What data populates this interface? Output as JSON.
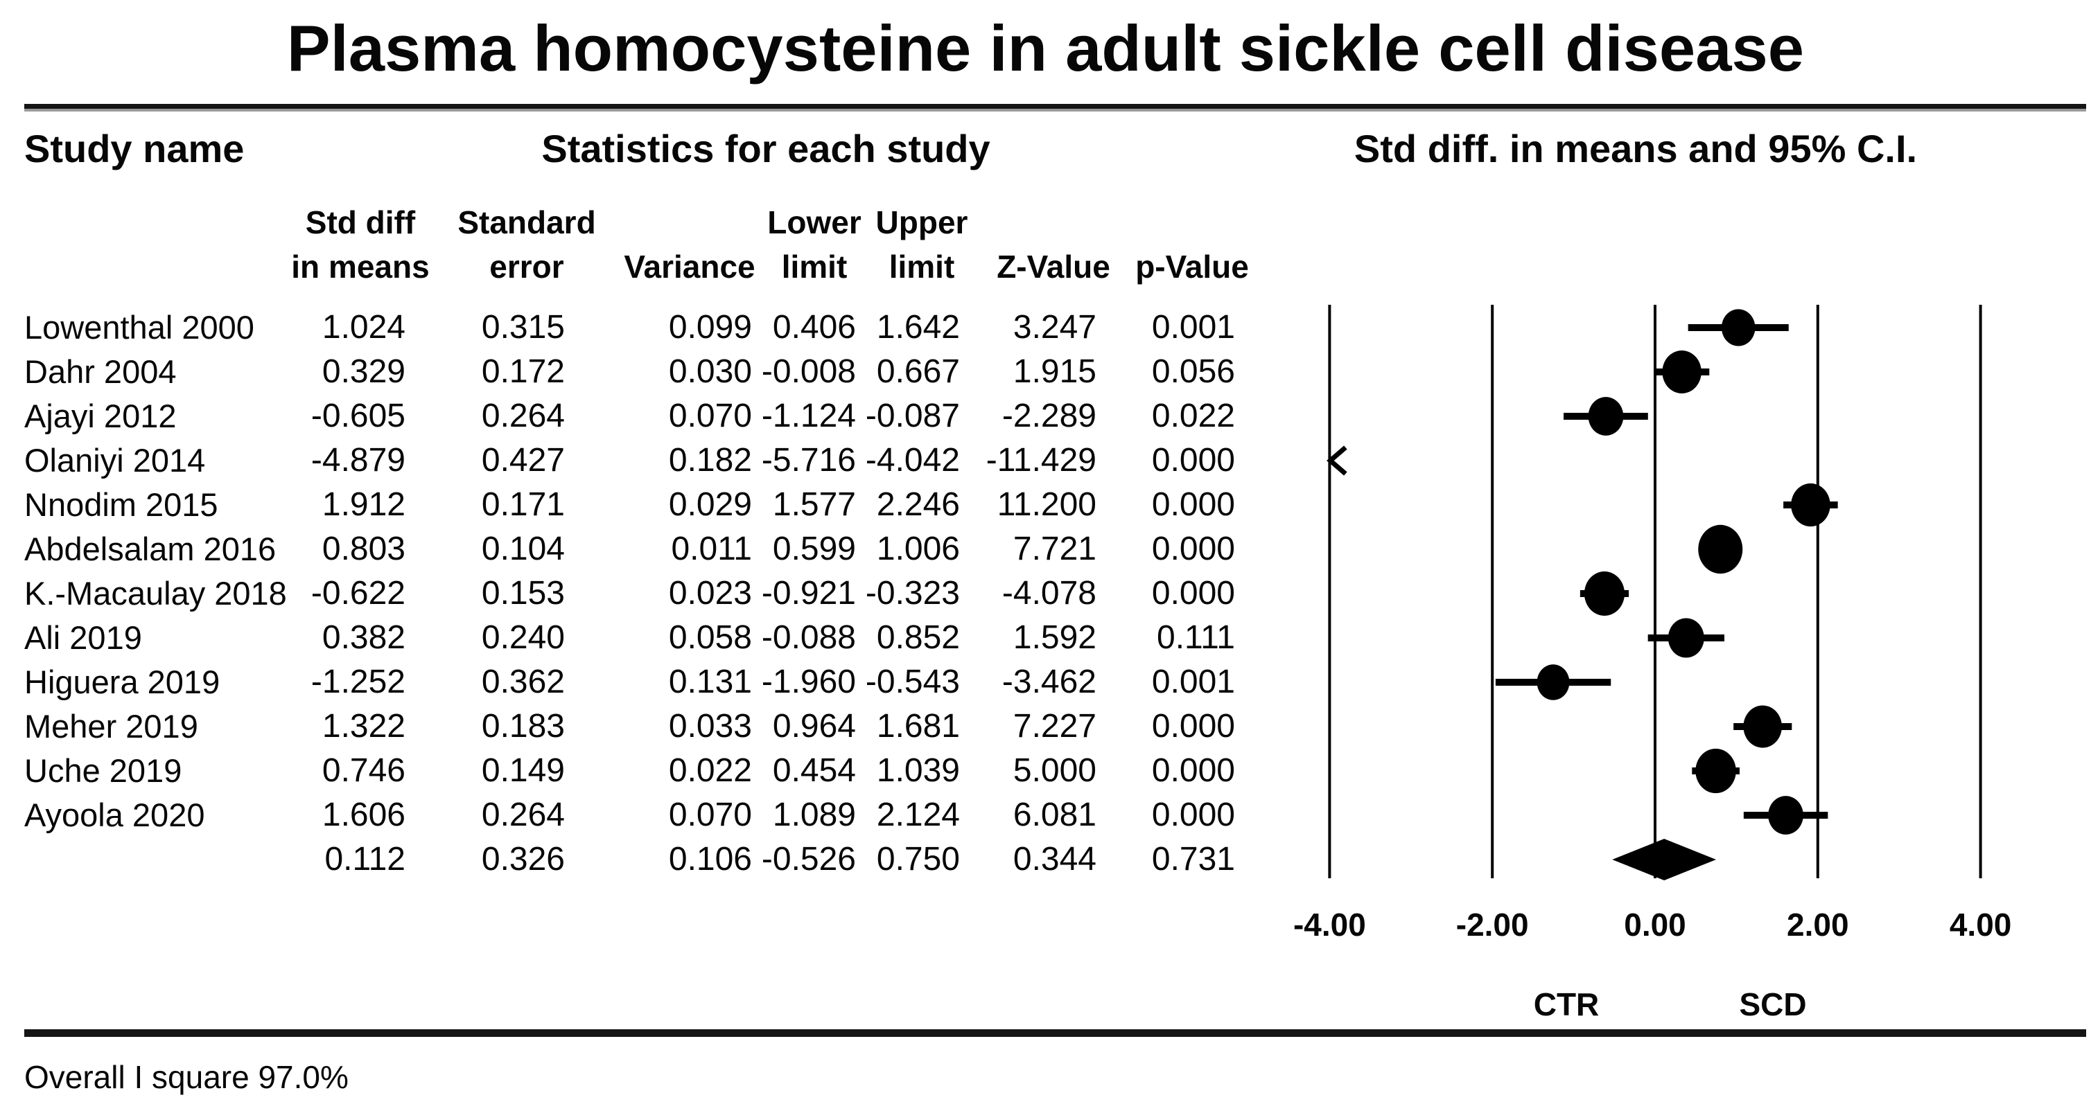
{
  "title": "Plasma homocysteine in adult sickle cell disease",
  "table": {
    "section_headers": {
      "study": "Study name",
      "stats": "Statistics for each study",
      "plot": "Std diff. in means and 95% C.I."
    },
    "columns": [
      {
        "lines": [
          "Std diff",
          "in means"
        ]
      },
      {
        "lines": [
          "Standard",
          "error"
        ]
      },
      {
        "lines": [
          "Variance"
        ]
      },
      {
        "lines": [
          "Lower",
          "limit"
        ]
      },
      {
        "lines": [
          "Upper",
          "limit"
        ]
      },
      {
        "lines": [
          "Z-Value"
        ]
      },
      {
        "lines": [
          "p-Value"
        ]
      }
    ],
    "rows": [
      {
        "study": "Lowenthal 2000",
        "std_diff": "1.024",
        "std_err": "0.315",
        "variance": "0.099",
        "lower": "0.406",
        "upper": "1.642",
        "z": "3.247",
        "p": "0.001"
      },
      {
        "study": "Dahr 2004",
        "std_diff": "0.329",
        "std_err": "0.172",
        "variance": "0.030",
        "lower": "-0.008",
        "upper": "0.667",
        "z": "1.915",
        "p": "0.056"
      },
      {
        "study": "Ajayi 2012",
        "std_diff": "-0.605",
        "std_err": "0.264",
        "variance": "0.070",
        "lower": "-1.124",
        "upper": "-0.087",
        "z": "-2.289",
        "p": "0.022"
      },
      {
        "study": "Olaniyi 2014",
        "std_diff": "-4.879",
        "std_err": "0.427",
        "variance": "0.182",
        "lower": "-5.716",
        "upper": "-4.042",
        "z": "-11.429",
        "p": "0.000"
      },
      {
        "study": "Nnodim 2015",
        "std_diff": "1.912",
        "std_err": "0.171",
        "variance": "0.029",
        "lower": "1.577",
        "upper": "2.246",
        "z": "11.200",
        "p": "0.000"
      },
      {
        "study": "Abdelsalam 2016",
        "std_diff": "0.803",
        "std_err": "0.104",
        "variance": "0.011",
        "lower": "0.599",
        "upper": "1.006",
        "z": "7.721",
        "p": "0.000"
      },
      {
        "study": "K.-Macaulay 2018",
        "std_diff": "-0.622",
        "std_err": "0.153",
        "variance": "0.023",
        "lower": "-0.921",
        "upper": "-0.323",
        "z": "-4.078",
        "p": "0.000"
      },
      {
        "study": "Ali 2019",
        "std_diff": "0.382",
        "std_err": "0.240",
        "variance": "0.058",
        "lower": "-0.088",
        "upper": "0.852",
        "z": "1.592",
        "p": "0.111"
      },
      {
        "study": "Higuera 2019",
        "std_diff": "-1.252",
        "std_err": "0.362",
        "variance": "0.131",
        "lower": "-1.960",
        "upper": "-0.543",
        "z": "-3.462",
        "p": "0.001"
      },
      {
        "study": "Meher 2019",
        "std_diff": "1.322",
        "std_err": "0.183",
        "variance": "0.033",
        "lower": "0.964",
        "upper": "1.681",
        "z": "7.227",
        "p": "0.000"
      },
      {
        "study": "Uche 2019",
        "std_diff": "0.746",
        "std_err": "0.149",
        "variance": "0.022",
        "lower": "0.454",
        "upper": "1.039",
        "z": "5.000",
        "p": "0.000"
      },
      {
        "study": "Ayoola 2020",
        "std_diff": "1.606",
        "std_err": "0.264",
        "variance": "0.070",
        "lower": "1.089",
        "upper": "2.124",
        "z": "6.081",
        "p": "0.000"
      },
      {
        "study": "",
        "std_diff": "0.112",
        "std_err": "0.326",
        "variance": "0.106",
        "lower": "-0.526",
        "upper": "0.750",
        "z": "0.344",
        "p": "0.731"
      }
    ]
  },
  "axis": {
    "tick_values": [
      -4,
      -2,
      0,
      2,
      4
    ],
    "tick_labels": [
      "-4.00",
      "-2.00",
      "0.00",
      "2.00",
      "4.00"
    ],
    "left_group_label": "CTR",
    "right_group_label": "SCD"
  },
  "footer": {
    "text": "Overall I square 97.0%"
  },
  "colors": {
    "ink": "#070707",
    "marker": "#000000",
    "gridline": "#000000"
  },
  "chart_data": {
    "type": "scatter",
    "subtype": "forest-plot",
    "title": "Plasma homocysteine in adult sickle cell disease",
    "effect_measure_label": "Std diff. in means and 95% C.I.",
    "xlabel": "",
    "xlim": [
      -4.7,
      4.7
    ],
    "x_ticks": [
      -4,
      -2,
      0,
      2,
      4
    ],
    "x_tick_labels": [
      "-4.00",
      "-2.00",
      "0.00",
      "2.00",
      "4.00"
    ],
    "group_labels": {
      "negative_side": "CTR",
      "positive_side": "SCD"
    },
    "grid": "vertical-lines-at-ticks",
    "studies": [
      {
        "name": "Lowenthal 2000",
        "estimate": 1.024,
        "se": 0.315,
        "variance": 0.099,
        "lower": 0.406,
        "upper": 1.642,
        "z": 3.247,
        "p": 0.001,
        "offscale_low": false
      },
      {
        "name": "Dahr 2004",
        "estimate": 0.329,
        "se": 0.172,
        "variance": 0.03,
        "lower": -0.008,
        "upper": 0.667,
        "z": 1.915,
        "p": 0.056,
        "offscale_low": false
      },
      {
        "name": "Ajayi 2012",
        "estimate": -0.605,
        "se": 0.264,
        "variance": 0.07,
        "lower": -1.124,
        "upper": -0.087,
        "z": -2.289,
        "p": 0.022,
        "offscale_low": false
      },
      {
        "name": "Olaniyi 2014",
        "estimate": -4.879,
        "se": 0.427,
        "variance": 0.182,
        "lower": -5.716,
        "upper": -4.042,
        "z": -11.429,
        "p": 0.0,
        "offscale_low": true
      },
      {
        "name": "Nnodim 2015",
        "estimate": 1.912,
        "se": 0.171,
        "variance": 0.029,
        "lower": 1.577,
        "upper": 2.246,
        "z": 11.2,
        "p": 0.0,
        "offscale_low": false
      },
      {
        "name": "Abdelsalam 2016",
        "estimate": 0.803,
        "se": 0.104,
        "variance": 0.011,
        "lower": 0.599,
        "upper": 1.006,
        "z": 7.721,
        "p": 0.0,
        "offscale_low": false
      },
      {
        "name": "K.-Macaulay 2018",
        "estimate": -0.622,
        "se": 0.153,
        "variance": 0.023,
        "lower": -0.921,
        "upper": -0.323,
        "z": -4.078,
        "p": 0.0,
        "offscale_low": false
      },
      {
        "name": "Ali 2019",
        "estimate": 0.382,
        "se": 0.24,
        "variance": 0.058,
        "lower": -0.088,
        "upper": 0.852,
        "z": 1.592,
        "p": 0.111,
        "offscale_low": false
      },
      {
        "name": "Higuera 2019",
        "estimate": -1.252,
        "se": 0.362,
        "variance": 0.131,
        "lower": -1.96,
        "upper": -0.543,
        "z": -3.462,
        "p": 0.001,
        "offscale_low": false
      },
      {
        "name": "Meher 2019",
        "estimate": 1.322,
        "se": 0.183,
        "variance": 0.033,
        "lower": 0.964,
        "upper": 1.681,
        "z": 7.227,
        "p": 0.0,
        "offscale_low": false
      },
      {
        "name": "Uche 2019",
        "estimate": 0.746,
        "se": 0.149,
        "variance": 0.022,
        "lower": 0.454,
        "upper": 1.039,
        "z": 5.0,
        "p": 0.0,
        "offscale_low": false
      },
      {
        "name": "Ayoola 2020",
        "estimate": 1.606,
        "se": 0.264,
        "variance": 0.07,
        "lower": 1.089,
        "upper": 2.124,
        "z": 6.081,
        "p": 0.0,
        "offscale_low": false
      }
    ],
    "overall": {
      "name": "Overall",
      "estimate": 0.112,
      "se": 0.326,
      "variance": 0.106,
      "lower": -0.526,
      "upper": 0.75,
      "z": 0.344,
      "p": 0.731,
      "marker": "diamond"
    },
    "heterogeneity_note": "Overall I square 97.0%"
  }
}
